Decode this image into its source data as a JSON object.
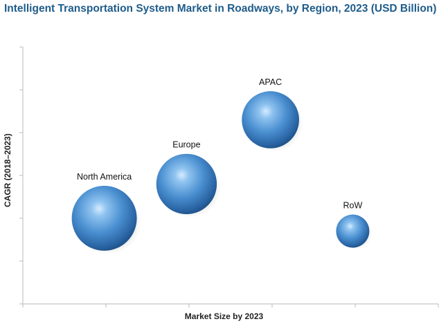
{
  "chart_data": {
    "type": "bubble",
    "title": "Intelligent Transportation System Market in Roadways, by Region, 2023 (USD Billion)",
    "xlabel": "Market Size by 2023",
    "ylabel": "CAGR (2018–2023)",
    "xlim": [
      0,
      5
    ],
    "ylim": [
      0,
      6
    ],
    "x_ticks": [
      0,
      1,
      2,
      3,
      4,
      5
    ],
    "y_ticks": [
      0,
      1,
      2,
      3,
      4,
      5,
      6
    ],
    "tick_labels_shown": false,
    "grid": false,
    "bubble_color": "#3d7fc2",
    "series": [
      {
        "label": "North America",
        "x": 0.98,
        "y": 2.0,
        "size": 1.0
      },
      {
        "label": "Europe",
        "x": 1.97,
        "y": 2.8,
        "size": 0.93
      },
      {
        "label": "APAC",
        "x": 2.98,
        "y": 4.3,
        "size": 0.88
      },
      {
        "label": "RoW",
        "x": 3.97,
        "y": 1.7,
        "size": 0.51
      }
    ]
  }
}
